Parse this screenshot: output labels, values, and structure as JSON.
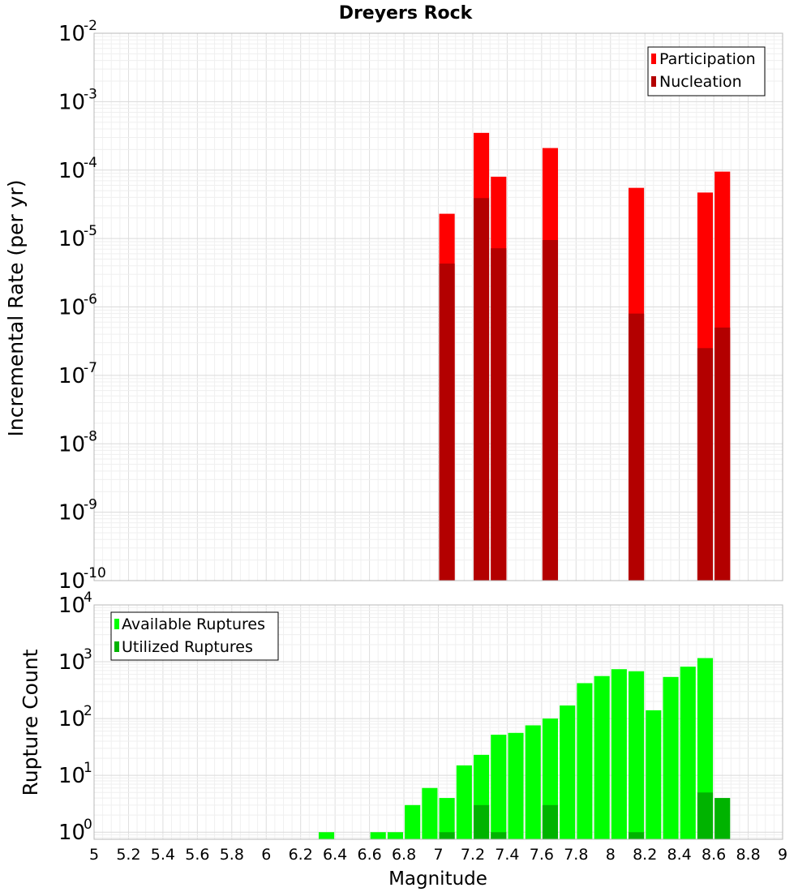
{
  "chart_data": [
    {
      "type": "bar",
      "title": "Dreyers Rock",
      "xlabel": "",
      "ylabel": "Incremental Rate (per yr)",
      "xlim": [
        5,
        9
      ],
      "ylim": [
        1e-10,
        0.01
      ],
      "yscale": "log",
      "grid": true,
      "legend_position": "top-right",
      "bar_width": 0.09,
      "y_tick_exponents": [
        "-10",
        "-9",
        "-8",
        "-7",
        "-6",
        "-5",
        "-4",
        "-3",
        "-2"
      ],
      "y_tick_base": "10",
      "series": [
        {
          "name": "Participation",
          "color": "#ff0000",
          "x": [
            7.05,
            7.25,
            7.35,
            7.65,
            8.15,
            8.55,
            8.65
          ],
          "values": [
            2.3e-05,
            0.00035,
            8e-05,
            0.00021,
            5.5e-05,
            4.7e-05,
            9.5e-05
          ]
        },
        {
          "name": "Nucleation",
          "color": "#b30000",
          "x": [
            7.05,
            7.25,
            7.35,
            7.65,
            8.15,
            8.55,
            8.65
          ],
          "values": [
            4.3e-06,
            3.9e-05,
            7.2e-06,
            9.5e-06,
            8e-07,
            2.5e-07,
            5e-07
          ]
        }
      ]
    },
    {
      "type": "bar",
      "title": "",
      "xlabel": "Magnitude",
      "ylabel": "Rupture Count",
      "xlim": [
        5,
        9
      ],
      "ylim": [
        0.75,
        10000
      ],
      "yscale": "log",
      "grid": true,
      "legend_position": "top-left",
      "bar_width": 0.09,
      "x_tick_labels": [
        "5",
        "5.2",
        "5.4",
        "5.6",
        "5.8",
        "6",
        "6.2",
        "6.4",
        "6.6",
        "6.8",
        "7",
        "7.2",
        "7.4",
        "7.6",
        "7.8",
        "8",
        "8.2",
        "8.4",
        "8.6",
        "8.8",
        "9"
      ],
      "y_tick_exponents": [
        "0",
        "1",
        "2",
        "3",
        "4"
      ],
      "y_tick_base": "10",
      "series": [
        {
          "name": "Available Ruptures",
          "color": "#00ff00",
          "x": [
            6.35,
            6.65,
            6.75,
            6.85,
            6.95,
            7.05,
            7.15,
            7.25,
            7.35,
            7.45,
            7.55,
            7.65,
            7.75,
            7.85,
            7.95,
            8.05,
            8.15,
            8.25,
            8.35,
            8.45,
            8.55
          ],
          "values": [
            1,
            1,
            1,
            3,
            6,
            4,
            15,
            23,
            52,
            56,
            76,
            100,
            170,
            420,
            560,
            740,
            680,
            140,
            540,
            820,
            1160
          ]
        },
        {
          "name": "Utilized Ruptures",
          "color": "#00b300",
          "x": [
            7.05,
            7.25,
            7.35,
            7.65,
            8.15,
            8.55,
            8.65
          ],
          "values": [
            1,
            3,
            1,
            3,
            1,
            5,
            4
          ]
        }
      ]
    }
  ]
}
